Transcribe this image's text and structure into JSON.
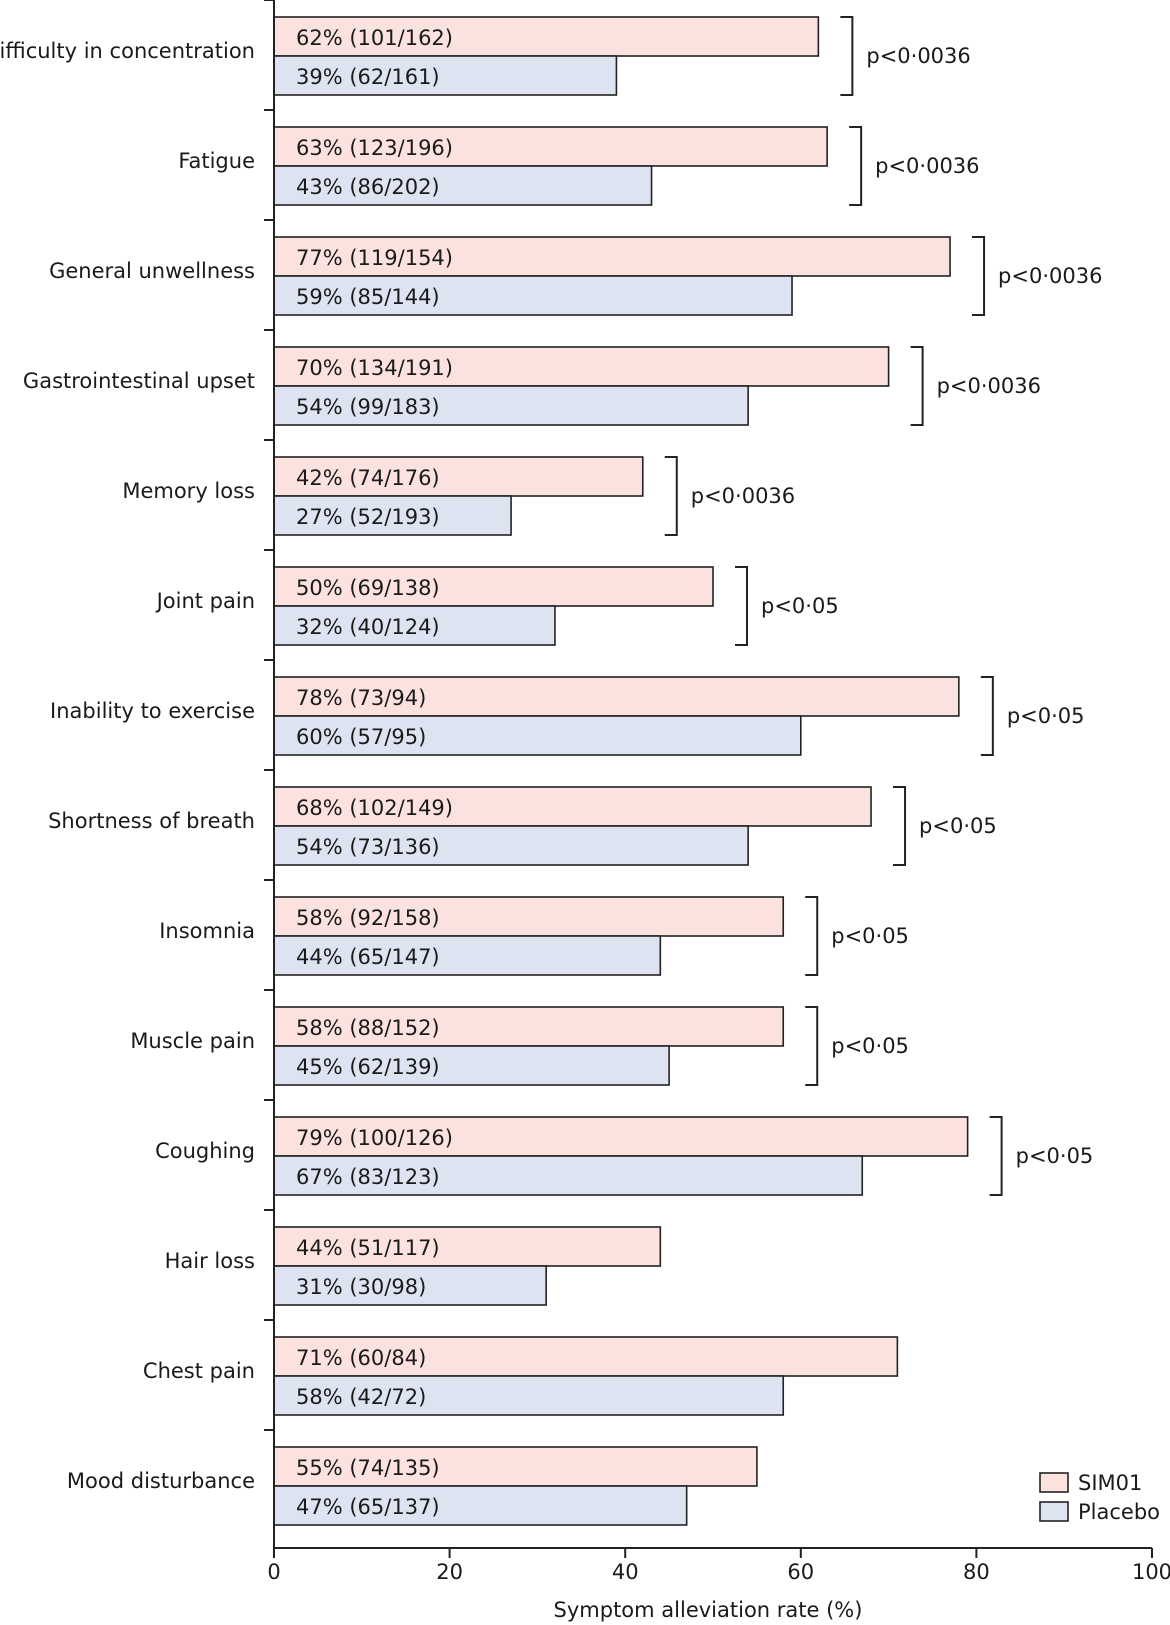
{
  "chart_data": {
    "type": "bar",
    "orientation": "horizontal",
    "xlabel": "Symptom alleviation rate (%)",
    "xlim": [
      0,
      100
    ],
    "xticks": [
      0,
      20,
      40,
      60,
      80,
      100
    ],
    "grid": false,
    "legend_position": "bottom-right",
    "colors": {
      "SIM01": "#fbe2df",
      "Placebo": "#dde3f1"
    },
    "series_names": [
      "SIM01",
      "Placebo"
    ],
    "categories": [
      {
        "label": "Difficulty in concentration",
        "sim": 62,
        "sim_text": "62% (101/162)",
        "placebo": 39,
        "placebo_text": "39% (62/161)",
        "p": "p<0·0036"
      },
      {
        "label": "Fatigue",
        "sim": 63,
        "sim_text": "63% (123/196)",
        "placebo": 43,
        "placebo_text": "43% (86/202)",
        "p": "p<0·0036"
      },
      {
        "label": "General unwellness",
        "sim": 77,
        "sim_text": "77% (119/154)",
        "placebo": 59,
        "placebo_text": "59% (85/144)",
        "p": "p<0·0036"
      },
      {
        "label": "Gastrointestinal upset",
        "sim": 70,
        "sim_text": "70% (134/191)",
        "placebo": 54,
        "placebo_text": "54% (99/183)",
        "p": "p<0·0036"
      },
      {
        "label": "Memory loss",
        "sim": 42,
        "sim_text": "42% (74/176)",
        "placebo": 27,
        "placebo_text": "27% (52/193)",
        "p": "p<0·0036"
      },
      {
        "label": "Joint pain",
        "sim": 50,
        "sim_text": "50% (69/138)",
        "placebo": 32,
        "placebo_text": "32% (40/124)",
        "p": "p<0·05"
      },
      {
        "label": "Inability to exercise",
        "sim": 78,
        "sim_text": "78% (73/94)",
        "placebo": 60,
        "placebo_text": "60% (57/95)",
        "p": "p<0·05"
      },
      {
        "label": "Shortness of breath",
        "sim": 68,
        "sim_text": "68% (102/149)",
        "placebo": 54,
        "placebo_text": "54% (73/136)",
        "p": "p<0·05"
      },
      {
        "label": "Insomnia",
        "sim": 58,
        "sim_text": "58% (92/158)",
        "placebo": 44,
        "placebo_text": "44% (65/147)",
        "p": "p<0·05"
      },
      {
        "label": "Muscle pain",
        "sim": 58,
        "sim_text": "58% (88/152)",
        "placebo": 45,
        "placebo_text": "45% (62/139)",
        "p": "p<0·05"
      },
      {
        "label": "Coughing",
        "sim": 79,
        "sim_text": "79% (100/126)",
        "placebo": 67,
        "placebo_text": "67% (83/123)",
        "p": "p<0·05"
      },
      {
        "label": "Hair loss",
        "sim": 44,
        "sim_text": "44% (51/117)",
        "placebo": 31,
        "placebo_text": "31% (30/98)",
        "p": ""
      },
      {
        "label": "Chest pain",
        "sim": 71,
        "sim_text": "71% (60/84)",
        "placebo": 58,
        "placebo_text": "58% (42/72)",
        "p": ""
      },
      {
        "label": "Mood disturbance",
        "sim": 55,
        "sim_text": "55% (74/135)",
        "placebo": 47,
        "placebo_text": "47% (65/137)",
        "p": ""
      }
    ]
  }
}
